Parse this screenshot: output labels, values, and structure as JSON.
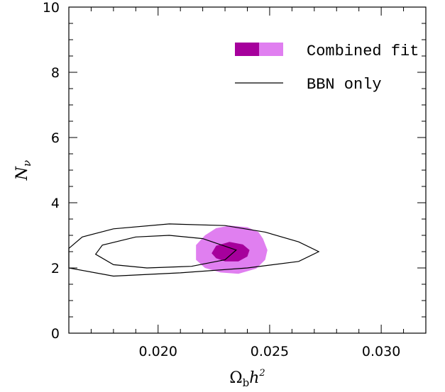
{
  "chart_data": {
    "type": "contour",
    "xlabel": "Ω",
    "xlabel_sub": "b",
    "xlabel_rest": "h",
    "xlabel_sup": "2",
    "ylabel": "N",
    "ylabel_sub": "ν",
    "xlim": [
      0.016,
      0.032
    ],
    "ylim": [
      0,
      10
    ],
    "x_ticks": [
      0.02,
      0.025,
      0.03
    ],
    "x_tick_labels": [
      "0.020",
      "0.025",
      "0.030"
    ],
    "y_ticks": [
      0,
      2,
      4,
      6,
      8,
      10
    ],
    "y_tick_labels": [
      "0",
      "2",
      "4",
      "6",
      "8",
      "10"
    ],
    "grid": false,
    "legend_position": "top-right",
    "legend": [
      {
        "label": "Combined fit",
        "style": "filled",
        "colors": [
          "#a6009c",
          "#e07ff0"
        ]
      },
      {
        "label": "BBN only",
        "style": "line",
        "colors": [
          "#000000"
        ]
      }
    ],
    "series": [
      {
        "name": "Combined fit",
        "level": "outer",
        "fill": "#e07ff0",
        "contour": [
          [
            0.0232,
            3.3
          ],
          [
            0.024,
            3.25
          ],
          [
            0.0245,
            3.1
          ],
          [
            0.0247,
            2.9
          ],
          [
            0.0249,
            2.55
          ],
          [
            0.0248,
            2.25
          ],
          [
            0.0244,
            1.98
          ],
          [
            0.0236,
            1.82
          ],
          [
            0.0228,
            1.86
          ],
          [
            0.0221,
            2.0
          ],
          [
            0.0217,
            2.25
          ],
          [
            0.0217,
            2.7
          ],
          [
            0.0221,
            3.0
          ],
          [
            0.0226,
            3.22
          ]
        ]
      },
      {
        "name": "Combined fit",
        "level": "inner",
        "fill": "#a6009c",
        "contour": [
          [
            0.0232,
            2.8
          ],
          [
            0.0238,
            2.72
          ],
          [
            0.0241,
            2.55
          ],
          [
            0.024,
            2.35
          ],
          [
            0.0236,
            2.2
          ],
          [
            0.023,
            2.2
          ],
          [
            0.0226,
            2.3
          ],
          [
            0.0224,
            2.45
          ],
          [
            0.0226,
            2.68
          ]
        ]
      },
      {
        "name": "BBN only",
        "level": "outer",
        "stroke": "#000000",
        "contour": [
          [
            0.016,
            2.6
          ],
          [
            0.0166,
            2.95
          ],
          [
            0.018,
            3.2
          ],
          [
            0.0205,
            3.35
          ],
          [
            0.023,
            3.3
          ],
          [
            0.0248,
            3.1
          ],
          [
            0.0263,
            2.8
          ],
          [
            0.0272,
            2.5
          ],
          [
            0.0263,
            2.2
          ],
          [
            0.024,
            2.0
          ],
          [
            0.021,
            1.85
          ],
          [
            0.018,
            1.75
          ],
          [
            0.016,
            2.0
          ]
        ]
      },
      {
        "name": "BBN only",
        "level": "inner",
        "stroke": "#000000",
        "contour": [
          [
            0.0172,
            2.42
          ],
          [
            0.0175,
            2.7
          ],
          [
            0.019,
            2.95
          ],
          [
            0.0205,
            3.0
          ],
          [
            0.022,
            2.9
          ],
          [
            0.0235,
            2.55
          ],
          [
            0.023,
            2.25
          ],
          [
            0.0215,
            2.05
          ],
          [
            0.0195,
            2.0
          ],
          [
            0.018,
            2.1
          ]
        ]
      }
    ]
  }
}
